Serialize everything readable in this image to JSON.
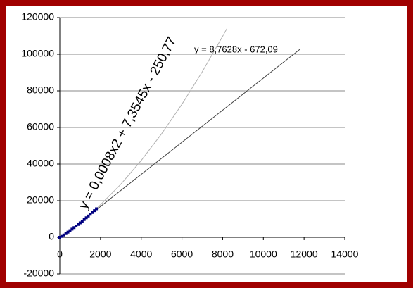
{
  "chart_data": {
    "type": "scatter",
    "xlim": [
      0,
      14000
    ],
    "xticks": [
      0,
      2000,
      4000,
      6000,
      8000,
      10000,
      12000,
      14000
    ],
    "ylim": [
      -20000,
      120000
    ],
    "yticks": [
      -20000,
      0,
      20000,
      40000,
      60000,
      80000,
      100000,
      120000
    ],
    "grid": true,
    "series": [
      {
        "kind": "points",
        "color": "#000080",
        "x": [
          0,
          100,
          200,
          300,
          400,
          500,
          600,
          700,
          800,
          900,
          1000,
          1100,
          1200,
          1300,
          1400,
          1500,
          1600,
          1700,
          1800
        ],
        "values": [
          0,
          492,
          1252,
          2027,
          2819,
          3626,
          4450,
          5289,
          6145,
          7016,
          7904,
          8807,
          9726,
          10662,
          11613,
          12581,
          13564,
          14564,
          15579
        ]
      },
      {
        "kind": "line",
        "color": "#b0b0b0",
        "x": [
          1800,
          3000,
          4000,
          5000,
          6000,
          7000,
          8000,
          8200
        ],
        "values": [
          15579,
          29013,
          41967,
          56522,
          72676,
          90431,
          109785,
          113848
        ]
      },
      {
        "kind": "line",
        "color": "#404040",
        "x": [
          1800,
          11800
        ],
        "values": [
          15101,
          102733
        ]
      }
    ],
    "annotations": [
      "y = 0,0008x2 + 7,3545x - 250,77",
      "y = 8,7628x - 672,09"
    ]
  }
}
